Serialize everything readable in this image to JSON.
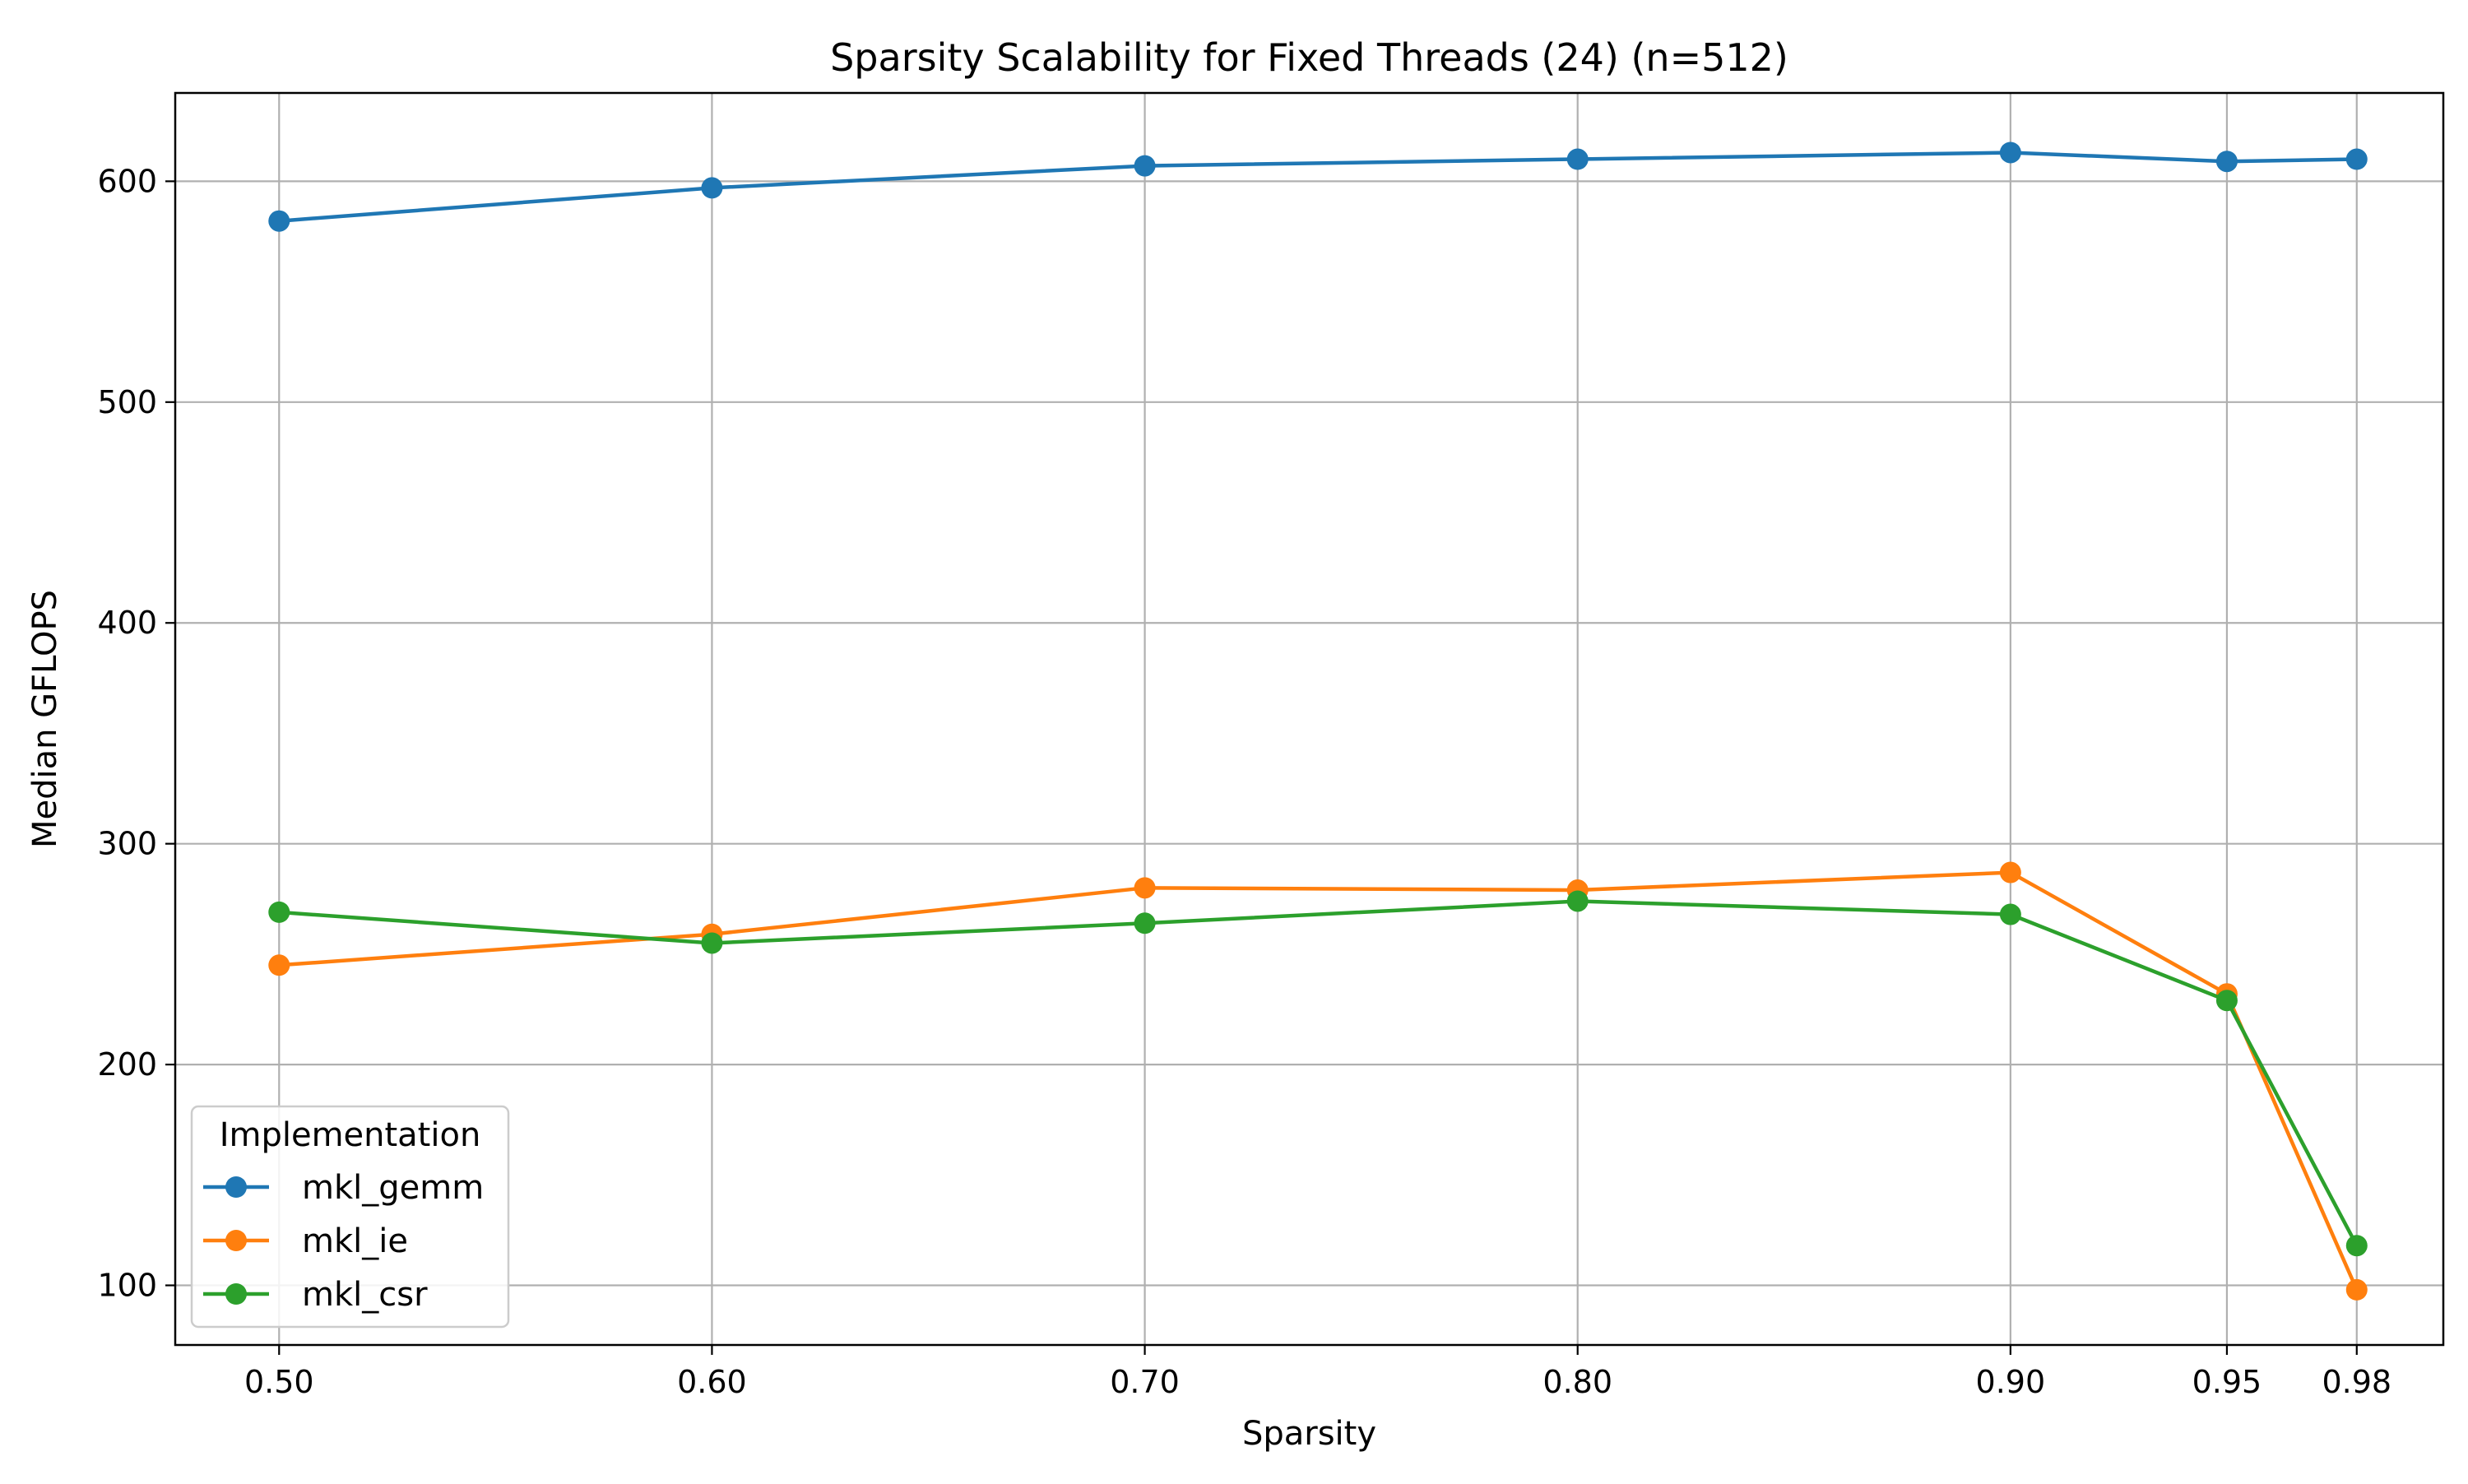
{
  "chart_data": {
    "type": "line",
    "title": "Sparsity Scalability for Fixed Threads (24) (n=512)",
    "xlabel": "Sparsity",
    "ylabel": "Median GFLOPS",
    "x": [
      0.5,
      0.6,
      0.7,
      0.8,
      0.9,
      0.95,
      0.98
    ],
    "x_tick_labels": [
      "0.50",
      "0.60",
      "0.70",
      "0.80",
      "0.90",
      "0.95",
      "0.98"
    ],
    "xlim": [
      0.476,
      1.0
    ],
    "ylim": [
      73,
      640
    ],
    "y_ticks": [
      100,
      200,
      300,
      400,
      500,
      600
    ],
    "grid": true,
    "legend": {
      "title": "Implementation",
      "location": "lower-left"
    },
    "series": [
      {
        "name": "mkl_gemm",
        "color": "#1f77b4",
        "marker": "circle",
        "values": [
          582,
          597,
          607,
          610,
          613,
          609,
          610
        ]
      },
      {
        "name": "mkl_ie",
        "color": "#ff7f0e",
        "marker": "circle",
        "values": [
          245,
          259,
          280,
          279,
          287,
          232,
          98
        ]
      },
      {
        "name": "mkl_csr",
        "color": "#2ca02c",
        "marker": "circle",
        "values": [
          269,
          255,
          264,
          274,
          268,
          229,
          118
        ]
      }
    ]
  }
}
